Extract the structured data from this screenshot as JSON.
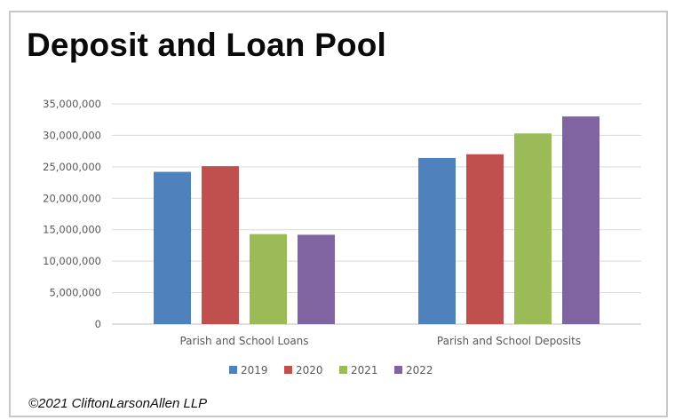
{
  "header": {
    "title": "Deposit and Loan Pool"
  },
  "footer": {
    "copyright": "©2021 CliftonLarsonAllen LLP"
  },
  "chart_data": {
    "type": "bar",
    "title": "Deposit and Loan Pool",
    "xlabel": "",
    "ylabel": "",
    "categories": [
      "Parish and School Loans",
      "Parish and School Deposits"
    ],
    "series": [
      {
        "name": "2019",
        "color": "#4f81bd",
        "values": [
          24200000,
          26400000
        ]
      },
      {
        "name": "2020",
        "color": "#c0504d",
        "values": [
          25100000,
          27000000
        ]
      },
      {
        "name": "2021",
        "color": "#9bbb59",
        "values": [
          14300000,
          30300000
        ]
      },
      {
        "name": "2022",
        "color": "#8064a2",
        "values": [
          14200000,
          33000000
        ]
      }
    ],
    "ylim": [
      0,
      35000000
    ],
    "yticks": [
      0,
      5000000,
      10000000,
      15000000,
      20000000,
      25000000,
      30000000,
      35000000
    ],
    "ytick_labels": [
      "0",
      "5,000,000",
      "10,000,000",
      "15,000,000",
      "20,000,000",
      "25,000,000",
      "30,000,000",
      "35,000,000"
    ],
    "grid": true,
    "legend_position": "bottom"
  }
}
